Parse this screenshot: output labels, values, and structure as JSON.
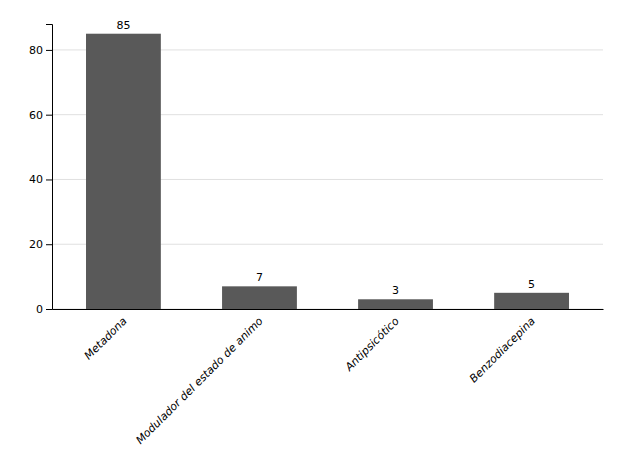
{
  "chart_data": {
    "type": "bar",
    "categories": [
      "Metadona",
      "Modulador del estado de animo",
      "Antipsicótico",
      "Benzodiacepina"
    ],
    "values": [
      85,
      7,
      3,
      5
    ],
    "color": "#595959",
    "ylim": [
      0,
      88
    ],
    "yticks": [
      0,
      20,
      40,
      60,
      80
    ],
    "grid": true,
    "data_labels": true
  }
}
